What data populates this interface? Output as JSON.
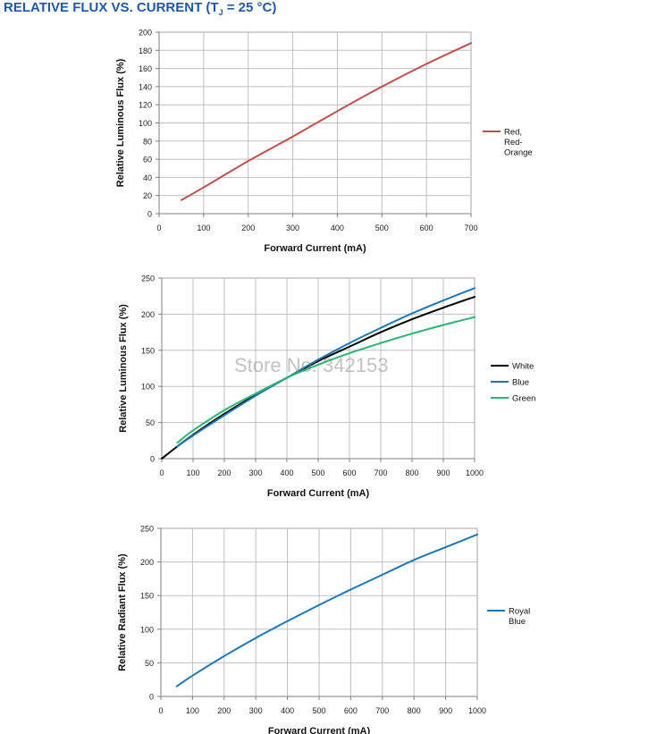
{
  "page_title": {
    "prefix": "RELATIVE FLUX VS. CURRENT (T",
    "subscript": "J",
    "suffix": " = 25 °C)",
    "color": "#2159a6"
  },
  "watermark": "Store No: 342153",
  "chart_data": [
    {
      "type": "line",
      "title": "",
      "xlabel": "Forward Current (mA)",
      "ylabel": "Relative Luminous Flux (%)",
      "xlim": [
        0,
        700
      ],
      "ylim": [
        0,
        200
      ],
      "xticks": [
        0,
        100,
        200,
        300,
        400,
        500,
        600,
        700
      ],
      "yticks": [
        0,
        20,
        40,
        60,
        80,
        100,
        120,
        140,
        160,
        180,
        200
      ],
      "grid": true,
      "legend_position": "right",
      "series": [
        {
          "name": "Red, Red-Orange",
          "legend_lines": [
            "Red,",
            "Red-",
            "Orange"
          ],
          "color": "#c0504d",
          "points": [
            [
              50,
              15
            ],
            [
              100,
              29
            ],
            [
              200,
              58
            ],
            [
              300,
              85
            ],
            [
              400,
              113
            ],
            [
              500,
              140
            ],
            [
              600,
              165
            ],
            [
              700,
              188
            ]
          ]
        }
      ]
    },
    {
      "type": "line",
      "title": "",
      "xlabel": "Forward Current (mA)",
      "ylabel": "Relative Luminous Flux (%)",
      "xlim": [
        0,
        1000
      ],
      "ylim": [
        0,
        250
      ],
      "xticks": [
        0,
        100,
        200,
        300,
        400,
        500,
        600,
        700,
        800,
        900,
        1000
      ],
      "yticks": [
        0,
        50,
        100,
        150,
        200,
        250
      ],
      "grid": true,
      "legend_position": "right",
      "series": [
        {
          "name": "White",
          "legend_lines": [
            "White"
          ],
          "color": "#000000",
          "points": [
            [
              0,
              0
            ],
            [
              50,
              17
            ],
            [
              100,
              33
            ],
            [
              200,
              62
            ],
            [
              300,
              88
            ],
            [
              400,
              112
            ],
            [
              500,
              135
            ],
            [
              600,
              155
            ],
            [
              700,
              175
            ],
            [
              800,
              193
            ],
            [
              900,
              209
            ],
            [
              1000,
              224
            ]
          ]
        },
        {
          "name": "Blue",
          "legend_lines": [
            "Blue"
          ],
          "color": "#1f78b4",
          "points": [
            [
              50,
              17
            ],
            [
              100,
              32
            ],
            [
              200,
              60
            ],
            [
              300,
              87
            ],
            [
              400,
              112
            ],
            [
              500,
              137
            ],
            [
              600,
              160
            ],
            [
              700,
              181
            ],
            [
              800,
              201
            ],
            [
              900,
              219
            ],
            [
              1000,
              236
            ]
          ]
        },
        {
          "name": "Green",
          "legend_lines": [
            "Green"
          ],
          "color": "#2bb673",
          "points": [
            [
              50,
              22
            ],
            [
              100,
              39
            ],
            [
              200,
              67
            ],
            [
              300,
              90
            ],
            [
              400,
              112
            ],
            [
              500,
              130
            ],
            [
              600,
              146
            ],
            [
              700,
              160
            ],
            [
              800,
              173
            ],
            [
              900,
              185
            ],
            [
              1000,
              196
            ]
          ]
        }
      ]
    },
    {
      "type": "line",
      "title": "",
      "xlabel": "Forward Current (mA)",
      "ylabel": "Relative Radiant Flux (%)",
      "xlim": [
        0,
        1000
      ],
      "ylim": [
        0,
        250
      ],
      "xticks": [
        0,
        100,
        200,
        300,
        400,
        500,
        600,
        700,
        800,
        900,
        1000
      ],
      "yticks": [
        0,
        50,
        100,
        150,
        200,
        250
      ],
      "grid": true,
      "legend_position": "right",
      "series": [
        {
          "name": "Royal Blue",
          "legend_lines": [
            "Royal",
            "Blue"
          ],
          "color": "#1f78b4",
          "points": [
            [
              50,
              15
            ],
            [
              100,
              31
            ],
            [
              200,
              60
            ],
            [
              300,
              87
            ],
            [
              400,
              112
            ],
            [
              500,
              136
            ],
            [
              600,
              159
            ],
            [
              700,
              181
            ],
            [
              800,
              203
            ],
            [
              900,
              222
            ],
            [
              1000,
              241
            ]
          ]
        }
      ]
    }
  ]
}
